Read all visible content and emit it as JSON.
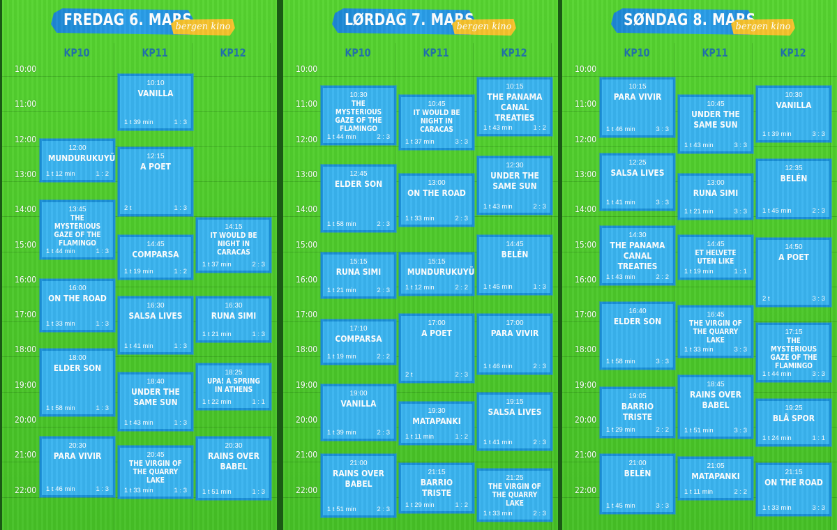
{
  "brand": "bergen kino",
  "columns": [
    "KP10",
    "KP11",
    "KP12"
  ],
  "hours": [
    "10:00",
    "11:00",
    "12:00",
    "13:00",
    "14:00",
    "15:00",
    "16:00",
    "17:00",
    "18:00",
    "19:00",
    "20:00",
    "21:00",
    "22:00"
  ],
  "days": [
    {
      "title": "FREDAG 6. MARS",
      "films": [
        {
          "col": 1,
          "time": "10:10",
          "name": "VANILLA",
          "duration": "1 t 39 min",
          "ratio": "1 : 3"
        },
        {
          "col": 0,
          "time": "12:00",
          "name": "MUNDURUKUYÜ",
          "duration": "1 t 12 min",
          "ratio": "1 : 2"
        },
        {
          "col": 1,
          "time": "12:15",
          "name": "A POET",
          "duration": "2 t",
          "ratio": "1 : 3"
        },
        {
          "col": 0,
          "time": "13:45",
          "name": "THE MYSTERIOUS GAZE OF THE FLAMINGO",
          "duration": "1 t 44 min",
          "ratio": "1 : 3",
          "small": true
        },
        {
          "col": 2,
          "time": "14:15",
          "name": "IT WOULD BE NIGHT IN CARACAS",
          "duration": "1 t 37 min",
          "ratio": "2 : 3",
          "small": true
        },
        {
          "col": 1,
          "time": "14:45",
          "name": "COMPARSA",
          "duration": "1 t 19 min",
          "ratio": "1 : 2"
        },
        {
          "col": 0,
          "time": "16:00",
          "name": "ON THE ROAD",
          "duration": "1 t 33 min",
          "ratio": "1 : 3"
        },
        {
          "col": 1,
          "time": "16:30",
          "name": "SALSA LIVES",
          "duration": "1 t 41 min",
          "ratio": "1 : 3"
        },
        {
          "col": 2,
          "time": "16:30",
          "name": "RUNA SIMI",
          "duration": "1 t 21 min",
          "ratio": "1 : 3"
        },
        {
          "col": 0,
          "time": "18:00",
          "name": "ELDER SON",
          "duration": "1 t 58 min",
          "ratio": "1 : 3"
        },
        {
          "col": 2,
          "time": "18:25",
          "name": "UPA! A SPRING IN ATHENS",
          "duration": "1 t 22 min",
          "ratio": "1 : 1",
          "small": true
        },
        {
          "col": 1,
          "time": "18:40",
          "name": "UNDER THE SAME SUN",
          "duration": "1 t 43 min",
          "ratio": "1 : 3"
        },
        {
          "col": 0,
          "time": "20:30",
          "name": "PARA VIVIR",
          "duration": "1 t 46 min",
          "ratio": "1 : 3"
        },
        {
          "col": 2,
          "time": "20:30",
          "name": "RAINS OVER BABEL",
          "duration": "1 t 51 min",
          "ratio": "1 : 3"
        },
        {
          "col": 1,
          "time": "20:45",
          "name": "THE VIRGIN OF THE QUARRY LAKE",
          "duration": "1 t 33 min",
          "ratio": "1 : 3",
          "small": true
        }
      ]
    },
    {
      "title": "LØRDAG 7. MARS",
      "films": [
        {
          "col": 2,
          "time": "10:15",
          "name": "THE PANAMA CANAL TREATIES",
          "duration": "1 t 43 min",
          "ratio": "1 : 2"
        },
        {
          "col": 0,
          "time": "10:30",
          "name": "THE MYSTERIOUS GAZE OF THE FLAMINGO",
          "duration": "1 t 44 min",
          "ratio": "2 : 3",
          "small": true
        },
        {
          "col": 1,
          "time": "10:45",
          "name": "IT WOULD BE NIGHT IN CARACAS",
          "duration": "1 t 37 min",
          "ratio": "3 : 3",
          "small": true
        },
        {
          "col": 2,
          "time": "12:30",
          "name": "UNDER THE SAME SUN",
          "duration": "1 t 43 min",
          "ratio": "2 : 3"
        },
        {
          "col": 0,
          "time": "12:45",
          "name": "ELDER SON",
          "duration": "1 t 58 min",
          "ratio": "2 : 3"
        },
        {
          "col": 1,
          "time": "13:00",
          "name": "ON THE ROAD",
          "duration": "1 t 33 min",
          "ratio": "2 : 3"
        },
        {
          "col": 2,
          "time": "14:45",
          "name": "BELÉN",
          "duration": "1 t 45 min",
          "ratio": "1 : 3"
        },
        {
          "col": 0,
          "time": "15:15",
          "name": "RUNA SIMI",
          "duration": "1 t 21 min",
          "ratio": "2 : 3"
        },
        {
          "col": 1,
          "time": "15:15",
          "name": "MUNDURUKUYÜ",
          "duration": "1 t 12 min",
          "ratio": "2 : 2"
        },
        {
          "col": 1,
          "time": "17:00",
          "name": "A POET",
          "duration": "2 t",
          "ratio": "2 : 3"
        },
        {
          "col": 2,
          "time": "17:00",
          "name": "PARA VIVIR",
          "duration": "1 t 46 min",
          "ratio": "2 : 3"
        },
        {
          "col": 0,
          "time": "17:10",
          "name": "COMPARSA",
          "duration": "1 t 19 min",
          "ratio": "2 : 2"
        },
        {
          "col": 0,
          "time": "19:00",
          "name": "VANILLA",
          "duration": "1 t 39 min",
          "ratio": "2 : 3"
        },
        {
          "col": 2,
          "time": "19:15",
          "name": "SALSA LIVES",
          "duration": "1 t 41 min",
          "ratio": "2 : 3"
        },
        {
          "col": 1,
          "time": "19:30",
          "name": "MATAPANKI",
          "duration": "1 t 11 min",
          "ratio": "1 : 2"
        },
        {
          "col": 0,
          "time": "21:00",
          "name": "RAINS OVER BABEL",
          "duration": "1 t 51 min",
          "ratio": "2 : 3"
        },
        {
          "col": 1,
          "time": "21:15",
          "name": "BARRIO TRISTE",
          "duration": "1 t 29 min",
          "ratio": "1 : 2"
        },
        {
          "col": 2,
          "time": "21:25",
          "name": "THE VIRGIN OF THE QUARRY LAKE",
          "duration": "1 t 33 min",
          "ratio": "2 : 3",
          "small": true
        }
      ]
    },
    {
      "title": "SØNDAG 8. MARS",
      "films": [
        {
          "col": 0,
          "time": "10:15",
          "name": "PARA VIVIR",
          "duration": "1 t 46 min",
          "ratio": "3 : 3"
        },
        {
          "col": 2,
          "time": "10:30",
          "name": "VANILLA",
          "duration": "1 t 39 min",
          "ratio": "3 : 3"
        },
        {
          "col": 1,
          "time": "10:45",
          "name": "UNDER THE SAME SUN",
          "duration": "1 t 43 min",
          "ratio": "3 : 3"
        },
        {
          "col": 0,
          "time": "12:25",
          "name": "SALSA LIVES",
          "duration": "1 t 41 min",
          "ratio": "3 : 3"
        },
        {
          "col": 2,
          "time": "12:35",
          "name": "BELÉN",
          "duration": "1 t 45 min",
          "ratio": "2 : 3"
        },
        {
          "col": 1,
          "time": "13:00",
          "name": "RUNA SIMI",
          "duration": "1 t 21 min",
          "ratio": "3 : 3"
        },
        {
          "col": 0,
          "time": "14:30",
          "name": "THE PANAMA CANAL TREATIES",
          "duration": "1 t 43 min",
          "ratio": "2 : 2"
        },
        {
          "col": 1,
          "time": "14:45",
          "name": "ET HELVETE UTEN LIKE",
          "duration": "1 t 19 min",
          "ratio": "1 : 1",
          "small": true
        },
        {
          "col": 2,
          "time": "14:50",
          "name": "A POET",
          "duration": "2 t",
          "ratio": "3 : 3"
        },
        {
          "col": 0,
          "time": "16:40",
          "name": "ELDER SON",
          "duration": "1 t 58 min",
          "ratio": "3 : 3"
        },
        {
          "col": 1,
          "time": "16:45",
          "name": "THE VIRGIN OF THE QUARRY LAKE",
          "duration": "1 t 33 min",
          "ratio": "3 : 3",
          "small": true
        },
        {
          "col": 2,
          "time": "17:15",
          "name": "THE MYSTERIOUS GAZE OF THE FLAMINGO",
          "duration": "1 t 44 min",
          "ratio": "3 : 3",
          "small": true
        },
        {
          "col": 1,
          "time": "18:45",
          "name": "RAINS OVER BABEL",
          "duration": "1 t 51 min",
          "ratio": "3 : 3"
        },
        {
          "col": 0,
          "time": "19:05",
          "name": "BARRIO TRISTE",
          "duration": "1 t 29 min",
          "ratio": "2 : 2"
        },
        {
          "col": 2,
          "time": "19:25",
          "name": "BLÅ SPOR",
          "duration": "1 t 24 min",
          "ratio": "1 : 1"
        },
        {
          "col": 0,
          "time": "21:00",
          "name": "BELÉN",
          "duration": "1 t 45 min",
          "ratio": "3 : 3"
        },
        {
          "col": 1,
          "time": "21:05",
          "name": "MATAPANKI",
          "duration": "1 t 11 min",
          "ratio": "2 : 2"
        },
        {
          "col": 2,
          "time": "21:15",
          "name": "ON THE ROAD",
          "duration": "1 t 33 min",
          "ratio": "3 : 3"
        }
      ]
    }
  ]
}
